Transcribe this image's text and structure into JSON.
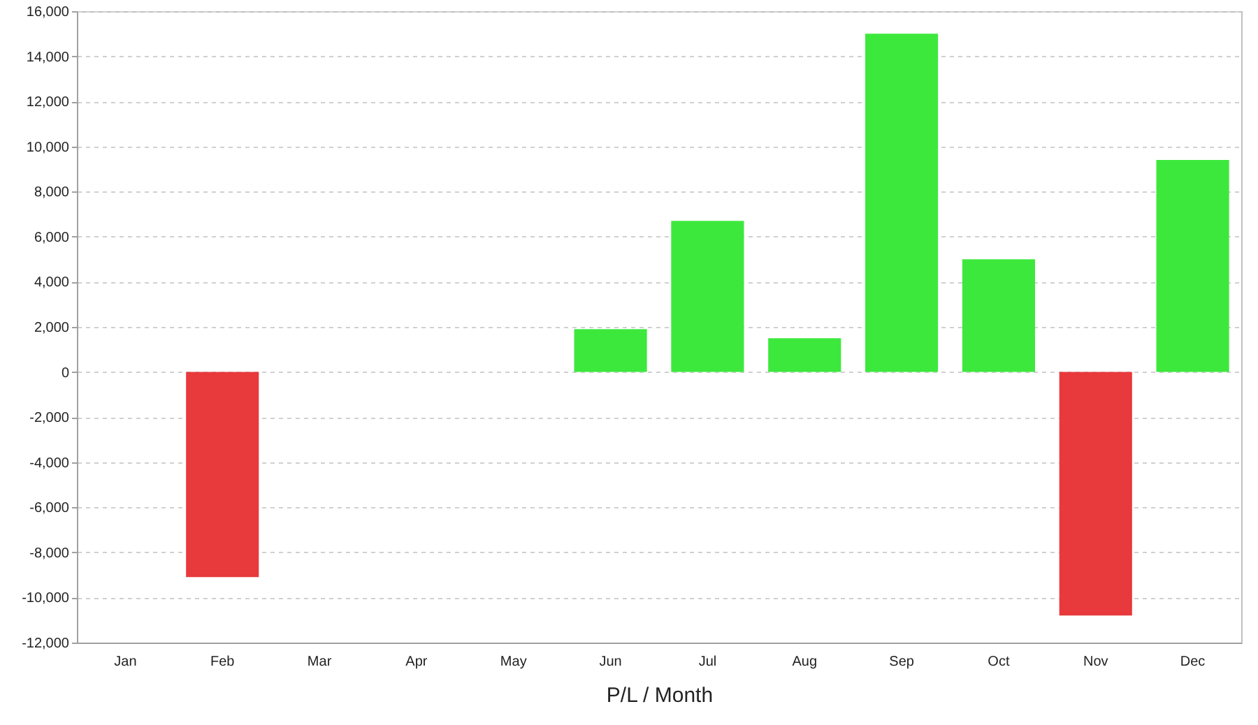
{
  "chart_data": {
    "type": "bar",
    "xlabel": "P/L / Month",
    "categories": [
      "Jan",
      "Feb",
      "Mar",
      "Apr",
      "May",
      "Jun",
      "Jul",
      "Aug",
      "Sep",
      "Oct",
      "Nov",
      "Dec"
    ],
    "values": [
      0,
      -9100,
      0,
      0,
      0,
      1900,
      6700,
      1500,
      15000,
      5000,
      -10800,
      9400
    ],
    "colors": [
      "#3de83d",
      "#e8393c",
      "#3de83d",
      "#3de83d",
      "#3de83d",
      "#3de83d",
      "#3de83d",
      "#3de83d",
      "#3de83d",
      "#3de83d",
      "#e8393c",
      "#3de83d"
    ],
    "ylim": [
      -12000,
      16000
    ],
    "yticks": [
      {
        "value": -12000,
        "label": "-12,000"
      },
      {
        "value": -10000,
        "label": "-10,000"
      },
      {
        "value": -8000,
        "label": "-8,000"
      },
      {
        "value": -6000,
        "label": "-6,000"
      },
      {
        "value": -4000,
        "label": "-4,000"
      },
      {
        "value": -2000,
        "label": "-2,000"
      },
      0,
      {
        "value": 2000,
        "label": "2,000"
      },
      {
        "value": 4000,
        "label": "4,000"
      },
      {
        "value": 6000,
        "label": "6,000"
      },
      {
        "value": 8000,
        "label": "8,000"
      },
      {
        "value": 10000,
        "label": "10,000"
      },
      {
        "value": 12000,
        "label": "12,000"
      },
      {
        "value": 14000,
        "label": "14,000"
      },
      {
        "value": 16000,
        "label": "16,000"
      }
    ],
    "grid": "y"
  }
}
